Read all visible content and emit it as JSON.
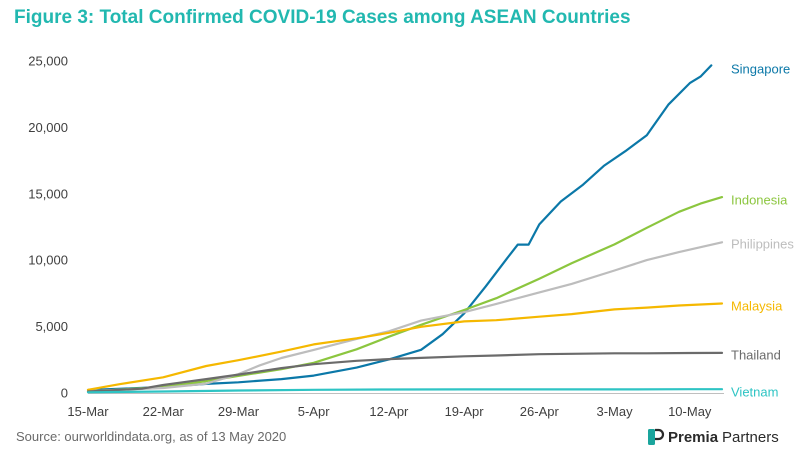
{
  "title": "Figure 3: Total Confirmed COVID-19 Cases among ASEAN Countries",
  "source": "Source: ourworldindata.org,  as of 13 May 2020",
  "brand": {
    "name_part1": "Premia",
    "name_part2": "Partners",
    "logo_icon": "premia-logo-icon"
  },
  "colors": {
    "title": "#22B8B0",
    "Singapore": "#0B78A8",
    "Indonesia": "#8CC63F",
    "Philippines": "#BDBDBD",
    "Malaysia": "#F5B800",
    "Thailand": "#6B6B6B",
    "Vietnam": "#2EC4C4"
  },
  "chart_data": {
    "type": "line",
    "x_start": "15-Mar",
    "x_end": "13-May",
    "x_tick_labels": [
      "15-Mar",
      "22-Mar",
      "29-Mar",
      "5-Apr",
      "12-Apr",
      "19-Apr",
      "26-Apr",
      "3-May",
      "10-May"
    ],
    "y_tick_labels": [
      "0",
      "5,000",
      "10,000",
      "15,000",
      "20,000",
      "25,000"
    ],
    "ylim": [
      0,
      25000
    ],
    "grid": false,
    "legend": "labels at line ends",
    "series": [
      {
        "name": "Singapore",
        "points": [
          [
            "15-Mar",
            226
          ],
          [
            "19-Mar",
            345
          ],
          [
            "22-Mar",
            455
          ],
          [
            "26-Mar",
            683
          ],
          [
            "29-Mar",
            802
          ],
          [
            "2-Apr",
            1049
          ],
          [
            "5-Apr",
            1309
          ],
          [
            "9-Apr",
            1910
          ],
          [
            "12-Apr",
            2532
          ],
          [
            "15-Apr",
            3252
          ],
          [
            "17-Apr",
            4427
          ],
          [
            "19-Apr",
            5992
          ],
          [
            "21-Apr",
            8014
          ],
          [
            "23-Apr",
            10141
          ],
          [
            "24-Apr",
            11178
          ],
          [
            "25-Apr",
            11178
          ],
          [
            "26-Apr",
            12693
          ],
          [
            "28-Apr",
            14423
          ],
          [
            "30-Apr",
            15641
          ],
          [
            "2-May",
            17101
          ],
          [
            "4-May",
            18205
          ],
          [
            "6-May",
            19410
          ],
          [
            "8-May",
            21707
          ],
          [
            "10-May",
            23336
          ],
          [
            "11-May",
            23822
          ],
          [
            "12-May",
            24671
          ]
        ]
      },
      {
        "name": "Indonesia",
        "points": [
          [
            "15-Mar",
            117
          ],
          [
            "22-Mar",
            450
          ],
          [
            "26-Mar",
            893
          ],
          [
            "29-Mar",
            1285
          ],
          [
            "2-Apr",
            1790
          ],
          [
            "5-Apr",
            2273
          ],
          [
            "9-Apr",
            3293
          ],
          [
            "12-Apr",
            4241
          ],
          [
            "15-Apr",
            5136
          ],
          [
            "19-Apr",
            6248
          ],
          [
            "22-Apr",
            7135
          ],
          [
            "26-Apr",
            8607
          ],
          [
            "29-Apr",
            9771
          ],
          [
            "3-May",
            11192
          ],
          [
            "6-May",
            12438
          ],
          [
            "9-May",
            13645
          ],
          [
            "11-May",
            14265
          ],
          [
            "13-May",
            14749
          ]
        ]
      },
      {
        "name": "Philippines",
        "points": [
          [
            "15-Mar",
            140
          ],
          [
            "22-Mar",
            380
          ],
          [
            "26-Mar",
            707
          ],
          [
            "29-Mar",
            1418
          ],
          [
            "31-Mar",
            2084
          ],
          [
            "2-Apr",
            2633
          ],
          [
            "5-Apr",
            3246
          ],
          [
            "9-Apr",
            4076
          ],
          [
            "12-Apr",
            4648
          ],
          [
            "15-Apr",
            5453
          ],
          [
            "19-Apr",
            6087
          ],
          [
            "22-Apr",
            6710
          ],
          [
            "26-Apr",
            7579
          ],
          [
            "29-Apr",
            8212
          ],
          [
            "3-May",
            9223
          ],
          [
            "6-May",
            10004
          ],
          [
            "9-May",
            10610
          ],
          [
            "13-May",
            11350
          ]
        ]
      },
      {
        "name": "Malaysia",
        "points": [
          [
            "15-Mar",
            238
          ],
          [
            "18-Mar",
            673
          ],
          [
            "22-Mar",
            1183
          ],
          [
            "26-Mar",
            2031
          ],
          [
            "29-Mar",
            2470
          ],
          [
            "2-Apr",
            3116
          ],
          [
            "5-Apr",
            3662
          ],
          [
            "9-Apr",
            4119
          ],
          [
            "12-Apr",
            4530
          ],
          [
            "15-Apr",
            4987
          ],
          [
            "19-Apr",
            5389
          ],
          [
            "22-Apr",
            5482
          ],
          [
            "26-Apr",
            5742
          ],
          [
            "29-Apr",
            5945
          ],
          [
            "3-May",
            6298
          ],
          [
            "6-May",
            6428
          ],
          [
            "9-May",
            6589
          ],
          [
            "13-May",
            6742
          ]
        ]
      },
      {
        "name": "Thailand",
        "points": [
          [
            "15-Mar",
            114
          ],
          [
            "20-Mar",
            322
          ],
          [
            "22-Mar",
            599
          ],
          [
            "26-Mar",
            1045
          ],
          [
            "29-Mar",
            1388
          ],
          [
            "2-Apr",
            1875
          ],
          [
            "5-Apr",
            2169
          ],
          [
            "9-Apr",
            2423
          ],
          [
            "12-Apr",
            2551
          ],
          [
            "15-Apr",
            2643
          ],
          [
            "19-Apr",
            2765
          ],
          [
            "22-Apr",
            2826
          ],
          [
            "26-Apr",
            2922
          ],
          [
            "29-Apr",
            2954
          ],
          [
            "3-May",
            2987
          ],
          [
            "6-May",
            2992
          ],
          [
            "10-May",
            3009
          ],
          [
            "13-May",
            3017
          ]
        ]
      },
      {
        "name": "Vietnam",
        "points": [
          [
            "15-Mar",
            53
          ],
          [
            "22-Mar",
            113
          ],
          [
            "29-Mar",
            188
          ],
          [
            "5-Apr",
            241
          ],
          [
            "12-Apr",
            262
          ],
          [
            "19-Apr",
            268
          ],
          [
            "26-Apr",
            270
          ],
          [
            "3-May",
            271
          ],
          [
            "10-May",
            288
          ],
          [
            "13-May",
            288
          ]
        ]
      }
    ]
  }
}
